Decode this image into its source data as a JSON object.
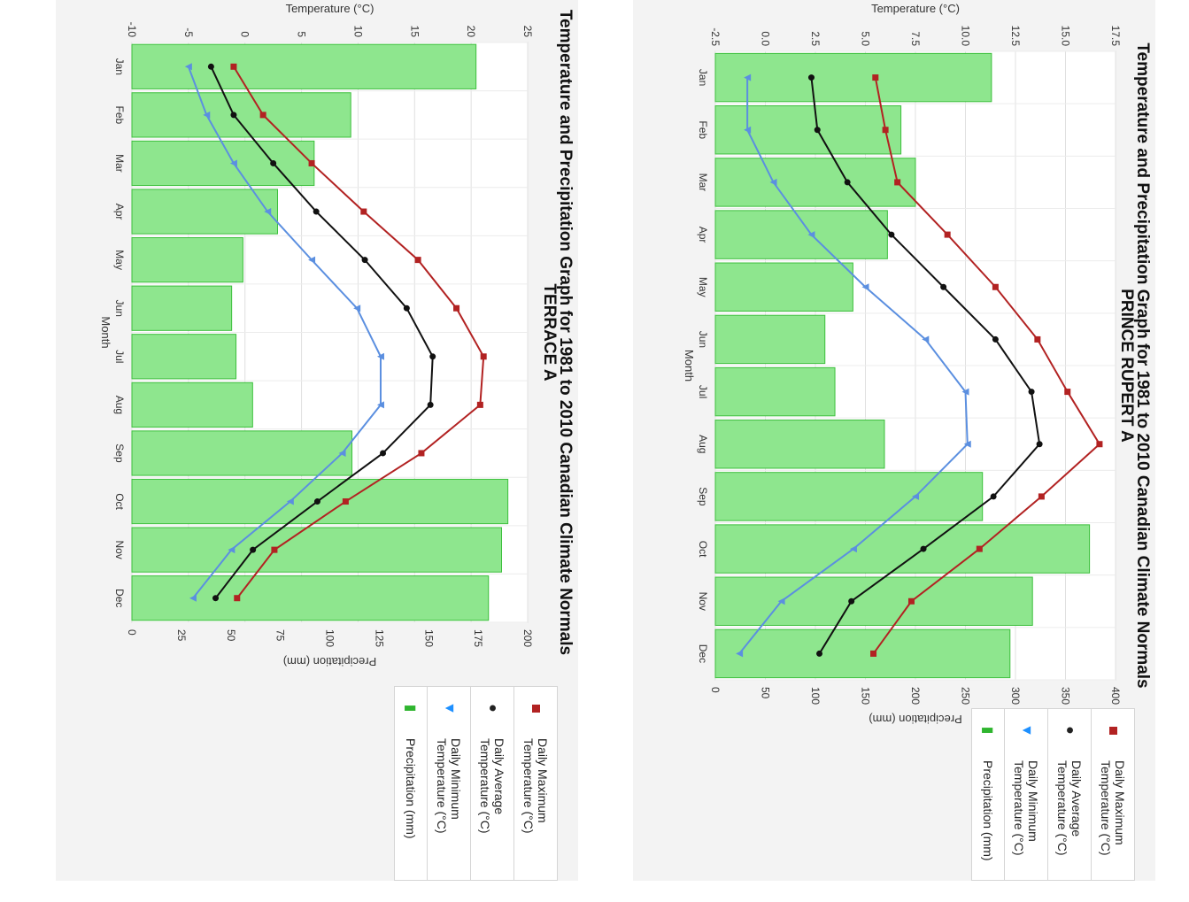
{
  "legend": {
    "max": "Daily Maximum Temperature (°C)",
    "avg": "Daily Average Temperature (°C)",
    "min": "Daily Minimum Temperature (°C)",
    "precip": "Precipitation (mm)"
  },
  "colors": {
    "max": "#b22222",
    "avg": "#111111",
    "min": "#5b8fe0",
    "bar_fill": "#8ee68e",
    "bar_stroke": "#3cbf3c"
  },
  "chart_data": [
    {
      "type": "bar",
      "id": "terrace",
      "title": "Temperature and Precipitation Graph for 1981 to 2010 Canadian Climate Normals",
      "subtitle": "TERRACE A",
      "xlabel": "Month",
      "ylabel_temp": "Temperature (°C)",
      "ylabel_precip": "Precipitation (mm)",
      "categories": [
        "Jan",
        "Feb",
        "Mar",
        "Apr",
        "May",
        "Jun",
        "Jul",
        "Aug",
        "Sep",
        "Oct",
        "Nov",
        "Dec"
      ],
      "temp_ylim": [
        -10,
        25
      ],
      "temp_ticks": [
        "-10",
        "-5",
        "0",
        "5",
        "10",
        "15",
        "20",
        "25"
      ],
      "precip_ylim": [
        0,
        200
      ],
      "precip_ticks": [
        "0",
        "25",
        "50",
        "75",
        "100",
        "125",
        "150",
        "175",
        "200"
      ],
      "series": [
        {
          "name": "Daily Maximum Temperature (°C)",
          "key": "max",
          "values": [
            -1.0,
            1.6,
            5.9,
            10.5,
            15.3,
            18.7,
            21.1,
            20.8,
            15.6,
            8.9,
            2.6,
            -0.7
          ]
        },
        {
          "name": "Daily Average Temperature (°C)",
          "key": "avg",
          "values": [
            -3.0,
            -1.0,
            2.5,
            6.3,
            10.6,
            14.3,
            16.6,
            16.4,
            12.2,
            6.4,
            0.7,
            -2.6
          ]
        },
        {
          "name": "Daily Minimum Temperature (°C)",
          "key": "min",
          "values": [
            -5.0,
            -3.4,
            -1.0,
            2.0,
            5.9,
            9.9,
            12.0,
            12.0,
            8.6,
            4.0,
            -1.2,
            -4.6
          ]
        },
        {
          "name": "Precipitation (mm)",
          "key": "precip",
          "values": [
            173.9,
            110.6,
            92.1,
            73.6,
            56.1,
            50.4,
            52.6,
            61.0,
            111.2,
            190.0,
            186.8,
            180.2
          ]
        }
      ]
    },
    {
      "type": "bar",
      "id": "rupert",
      "title": "Temperature and Precipitation Graph for 1981 to 2010 Canadian Climate Normals",
      "subtitle": "PRINCE RUPERT A",
      "xlabel": "Month",
      "ylabel_temp": "Temperature (°C)",
      "ylabel_precip": "Precipitation (mm)",
      "categories": [
        "Jan",
        "Feb",
        "Mar",
        "Apr",
        "May",
        "Jun",
        "Jul",
        "Aug",
        "Sep",
        "Oct",
        "Nov",
        "Dec"
      ],
      "temp_ylim": [
        -2.5,
        17.5
      ],
      "temp_ticks": [
        "-2.5",
        "0.0",
        "2.5",
        "5.0",
        "7.5",
        "10.0",
        "12.5",
        "15.0",
        "17.5"
      ],
      "precip_ylim": [
        0,
        400
      ],
      "precip_ticks": [
        "0",
        "50",
        "100",
        "150",
        "200",
        "250",
        "300",
        "350",
        "400"
      ],
      "series": [
        {
          "name": "Daily Maximum Temperature (°C)",
          "key": "max",
          "values": [
            5.5,
            6.0,
            6.6,
            9.1,
            11.5,
            13.6,
            15.1,
            16.7,
            13.8,
            10.7,
            7.3,
            5.4
          ]
        },
        {
          "name": "Daily Average Temperature (°C)",
          "key": "avg",
          "values": [
            2.3,
            2.6,
            4.1,
            6.3,
            8.9,
            11.5,
            13.3,
            13.7,
            11.4,
            7.9,
            4.3,
            2.7
          ]
        },
        {
          "name": "Daily Minimum Temperature (°C)",
          "key": "min",
          "values": [
            -0.9,
            -0.9,
            0.4,
            2.3,
            5.0,
            8.0,
            10.0,
            10.1,
            7.5,
            4.4,
            0.8,
            -1.3
          ]
        },
        {
          "name": "Precipitation (mm)",
          "key": "precip",
          "values": [
            276.0,
            185.5,
            200.0,
            172.0,
            137.5,
            109.5,
            119.5,
            169.0,
            267.0,
            374.0,
            317.0,
            294.5
          ]
        }
      ]
    }
  ]
}
